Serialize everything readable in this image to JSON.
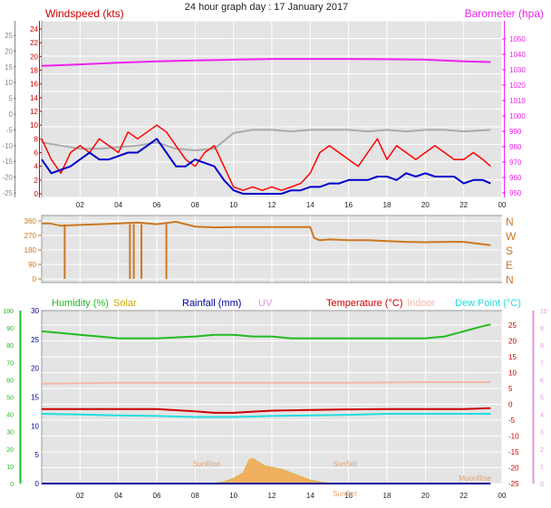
{
  "title": "24 hour graph day : 17 January 2017",
  "colors": {
    "plot_bg": "#e4e4e4",
    "gridline": "#ffffff",
    "text_dark": "#222222",
    "wind_gust": "#ff0000",
    "wind_avg": "#0000cc",
    "wind_chill": "#aaaaaa",
    "barometer": "#ee22ee",
    "direction": "#cc7722",
    "humidity": "#22bb22",
    "solar": "#ccaa00",
    "solar_fill": "#f0b060",
    "rainfall": "#000099",
    "uv": "#dd99dd",
    "temperature": "#cc0000",
    "indoor": "#f4b8a8",
    "dew_point": "#22dddd",
    "dew_spread": "#b4b4ff",
    "axis_green": "#22bb22",
    "axis_red": "#cc0000",
    "axis_pink": "#ee22ee",
    "axis_orange": "#cc7722"
  },
  "chart_data": [
    {
      "id": "wind",
      "type": "line",
      "left_label": "Windspeed (kts)",
      "right_label": "Barometer (hpa)",
      "x_ticks": [
        "02",
        "04",
        "06",
        "08",
        "10",
        "12",
        "14",
        "16",
        "18",
        "20",
        "22",
        "00"
      ],
      "left_axis": {
        "range": [
          -25,
          25
        ],
        "upper_ticks": [
          "24",
          "22",
          "20",
          "18",
          "16",
          "14",
          "12",
          "10",
          "8",
          "6",
          "4",
          "2",
          "0"
        ],
        "lower_ticks": [
          "25",
          "20",
          "15",
          "10",
          "5",
          "0",
          "-5",
          "-10",
          "-15",
          "-20",
          "-25"
        ]
      },
      "right_axis": {
        "range": [
          950,
          1050
        ],
        "ticks": [
          "1050",
          "1040",
          "1030",
          "1020",
          "1010",
          "1000",
          "990",
          "980",
          "970",
          "960",
          "950"
        ]
      },
      "series": [
        {
          "color": "#ee22ee",
          "hours": [
            0,
            2,
            4,
            6,
            8,
            10,
            12,
            14,
            16,
            18,
            20,
            22,
            23.4
          ],
          "values": [
            1032.5,
            1033.5,
            1034.5,
            1035.5,
            1036,
            1036.5,
            1037,
            1037,
            1037,
            1036.8,
            1036.5,
            1035.5,
            1035
          ]
        },
        {
          "color": "#aaaaaa",
          "hours": [
            0,
            1,
            2,
            3,
            4,
            5,
            6,
            7,
            8,
            9,
            10,
            11,
            12,
            13,
            14,
            15,
            16,
            17,
            18,
            19,
            20,
            21,
            22,
            23.4
          ],
          "values": [
            -9,
            -10,
            -11,
            -11,
            -10.5,
            -10,
            -9,
            -11,
            -11.5,
            -11,
            -6,
            -5,
            -5,
            -5.5,
            -5,
            -5,
            -5,
            -5.5,
            -5,
            -5.5,
            -5,
            -5,
            -5.5,
            -5
          ]
        },
        {
          "color": "#ff0000",
          "hours": [
            0,
            0.5,
            1,
            1.5,
            2,
            2.5,
            3,
            3.5,
            4,
            4.5,
            5,
            5.5,
            6,
            6.5,
            7,
            7.5,
            8,
            8.5,
            9,
            9.5,
            10,
            10.5,
            11,
            11.5,
            12,
            12.5,
            13,
            13.5,
            14,
            14.5,
            15,
            15.5,
            16,
            16.5,
            17,
            17.5,
            18,
            18.5,
            19,
            19.5,
            20,
            20.5,
            21,
            21.5,
            22,
            22.5,
            23,
            23.4
          ],
          "values": [
            8,
            5,
            3,
            6,
            7,
            6,
            8,
            7,
            6,
            9,
            8,
            9,
            10,
            9,
            7,
            5,
            4,
            6,
            7,
            4,
            1,
            0.5,
            1,
            0.5,
            1,
            0.5,
            1,
            1.5,
            3,
            6,
            7,
            6,
            5,
            4,
            6,
            8,
            5,
            7,
            6,
            5,
            6,
            7,
            6,
            5,
            5,
            6,
            5,
            4
          ]
        },
        {
          "color": "#0000cc",
          "hours": [
            0,
            0.5,
            1,
            1.5,
            2,
            2.5,
            3,
            3.5,
            4,
            4.5,
            5,
            5.5,
            6,
            6.5,
            7,
            7.5,
            8,
            8.5,
            9,
            9.5,
            10,
            10.5,
            11,
            11.5,
            12,
            12.5,
            13,
            13.5,
            14,
            14.5,
            15,
            15.5,
            16,
            16.5,
            17,
            17.5,
            18,
            18.5,
            19,
            19.5,
            20,
            20.5,
            21,
            21.5,
            22,
            22.5,
            23,
            23.4
          ],
          "values": [
            5,
            3,
            3.5,
            4,
            5,
            6,
            5,
            5,
            5.5,
            6,
            6,
            7,
            8,
            6,
            4,
            4,
            5,
            4.5,
            4,
            2,
            0.5,
            0,
            0,
            0,
            0,
            0,
            0.5,
            0.5,
            1,
            1,
            1.5,
            1.5,
            2,
            2,
            2,
            2.5,
            2.5,
            2,
            3,
            2.5,
            3,
            2.5,
            2.5,
            2.5,
            1.5,
            2,
            2,
            1.5
          ]
        }
      ]
    },
    {
      "id": "direction",
      "type": "line",
      "y_ticks": [
        "360",
        "270",
        "180",
        "90",
        "0"
      ],
      "y_range": [
        0,
        360
      ],
      "right_ticks": [
        "N",
        "W",
        "S",
        "E",
        "N"
      ],
      "series": [
        {
          "color": "#cc7722",
          "hours": [
            0,
            0.4,
            1,
            2,
            3,
            4,
            5,
            6,
            7,
            8,
            9,
            10,
            11,
            12,
            13,
            14,
            14.2,
            14.5,
            15,
            16,
            17,
            18,
            19,
            20,
            21,
            22,
            23,
            23.4
          ],
          "values": [
            345,
            345,
            330,
            335,
            340,
            345,
            350,
            340,
            355,
            325,
            320,
            322,
            322,
            322,
            322,
            322,
            255,
            240,
            245,
            240,
            240,
            235,
            230,
            228,
            230,
            230,
            215,
            210
          ]
        }
      ],
      "spikes": [
        {
          "hour": 1.2,
          "value": 0
        },
        {
          "hour": 4.6,
          "value": 0
        },
        {
          "hour": 4.8,
          "value": 0
        },
        {
          "hour": 5.2,
          "value": 0
        },
        {
          "hour": 6.5,
          "value": 0
        }
      ]
    },
    {
      "id": "thermo",
      "type": "line",
      "x_ticks": [
        "02",
        "04",
        "06",
        "08",
        "10",
        "12",
        "14",
        "16",
        "18",
        "20",
        "22",
        "00"
      ],
      "legend": [
        {
          "label": "Humidity (%)",
          "color": "#22bb22"
        },
        {
          "label": "Solar",
          "color": "#ccaa00"
        },
        {
          "label": "Rainfall (mm)",
          "color": "#000099"
        },
        {
          "label": "UV",
          "color": "#dd99dd"
        },
        {
          "label": "Temperature (°C)",
          "color": "#cc0000"
        },
        {
          "label": "Indoor",
          "color": "#f4b8a8"
        },
        {
          "label": "Dew Point (°C)",
          "color": "#22dddd"
        }
      ],
      "axes": {
        "humidity": {
          "range": [
            0,
            100
          ],
          "ticks": [
            "100",
            "90",
            "80",
            "70",
            "60",
            "50",
            "40",
            "30",
            "20",
            "10",
            "0"
          ]
        },
        "rainfall": {
          "range": [
            0,
            30
          ],
          "ticks": [
            "30",
            "25",
            "20",
            "15",
            "10",
            "5",
            "0"
          ]
        },
        "temperature": {
          "range": [
            -25,
            25
          ],
          "ticks": [
            "25",
            "20",
            "15",
            "10",
            "5",
            "0",
            "-5",
            "-10",
            "-15",
            "-20",
            "-25"
          ]
        },
        "uv": {
          "range": [
            0,
            10
          ],
          "ticks": [
            "10",
            "9",
            "8",
            "7",
            "6",
            "5",
            "4",
            "3",
            "2",
            "1",
            "0"
          ]
        }
      },
      "series": [
        {
          "name": "Humidity (%)",
          "color": "#22bb22",
          "hours": [
            0,
            1,
            2,
            3,
            4,
            5,
            6,
            7,
            8,
            9,
            10,
            11,
            12,
            13,
            14,
            15,
            16,
            17,
            18,
            19,
            20,
            21,
            22,
            23,
            23.4
          ],
          "values": [
            88,
            87,
            86,
            85,
            84,
            84,
            84,
            84.5,
            85,
            86,
            86,
            85,
            85,
            84,
            84,
            84,
            84,
            84,
            84,
            84,
            84,
            85,
            88,
            91,
            92
          ]
        },
        {
          "name": "Indoor",
          "color": "#f4b8a8",
          "hours": [
            0,
            4,
            8,
            12,
            16,
            20,
            23.4
          ],
          "values": [
            6.5,
            6.8,
            6.8,
            6.8,
            6.8,
            7,
            7
          ]
        },
        {
          "name": "Temperature (°C)",
          "color": "#cc0000",
          "hours": [
            0,
            2,
            4,
            6,
            8,
            9,
            10,
            11,
            12,
            14,
            16,
            18,
            20,
            22,
            23.4
          ],
          "values": [
            -1.5,
            -1.5,
            -1.5,
            -1.5,
            -2.2,
            -2.7,
            -2.7,
            -2.3,
            -2,
            -1.8,
            -1.6,
            -1.5,
            -1.5,
            -1.5,
            -1.2
          ]
        },
        {
          "name": "Dew Point (°C)",
          "color": "#22dddd",
          "hours": [
            0,
            2,
            4,
            6,
            8,
            10,
            12,
            14,
            16,
            18,
            20,
            22,
            23.4
          ],
          "values": [
            -3,
            -3.2,
            -3.5,
            -3.7,
            -4,
            -4,
            -3.7,
            -3.5,
            -3.3,
            -3,
            -3,
            -3,
            -3
          ]
        },
        {
          "name": "Solar",
          "color": "#ccaa00",
          "hours": [
            8.8,
            9.5,
            10,
            10.5,
            10.8,
            11,
            11.3,
            11.6,
            12,
            12.5,
            13,
            13.5,
            14,
            14.5,
            15.2
          ],
          "values": [
            0,
            1,
            3,
            6,
            13,
            14,
            12,
            10,
            9,
            8,
            6,
            4,
            2,
            1,
            0
          ]
        },
        {
          "name": "Rainfall (mm)",
          "color": "#000099",
          "hours": [
            0,
            23.4
          ],
          "values": [
            0,
            0
          ]
        }
      ],
      "annotations": [
        {
          "text": "SunRise",
          "hour": 8.6
        },
        {
          "text": "SunSet",
          "hour": 15.8
        },
        {
          "text": "MoonRise",
          "hour": 22.6
        },
        {
          "text": "SunSet",
          "hour": 15.8
        }
      ]
    }
  ]
}
